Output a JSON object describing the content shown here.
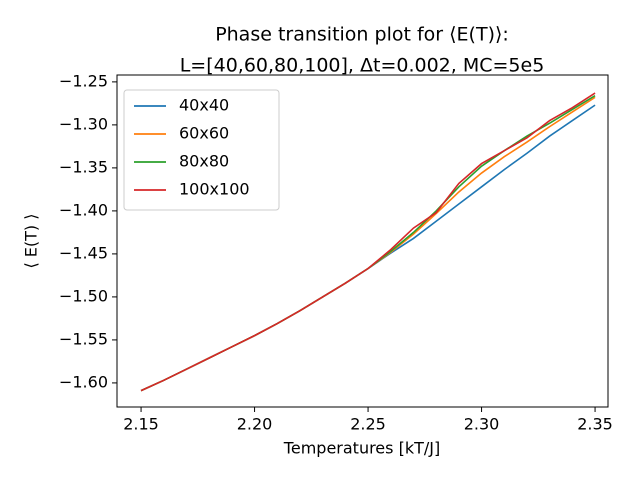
{
  "chart_data": {
    "type": "line",
    "title": [
      "Phase transition plot for ⟨E(T)⟩:",
      "L=[40,60,80,100], Δt=0.002, MC=5e5"
    ],
    "xlabel": "Temperatures [kT/J]",
    "ylabel": "⟨ E(T) ⟩",
    "x": [
      2.15,
      2.16,
      2.17,
      2.18,
      2.19,
      2.2,
      2.21,
      2.22,
      2.23,
      2.24,
      2.25,
      2.26,
      2.27,
      2.28,
      2.29,
      2.3,
      2.31,
      2.32,
      2.33,
      2.34,
      2.35
    ],
    "series": [
      {
        "name": "40x40",
        "color": "#1f77b4",
        "values": [
          -1.609,
          -1.597,
          -1.584,
          -1.571,
          -1.558,
          -1.545,
          -1.531,
          -1.516,
          -1.5,
          -1.484,
          -1.467,
          -1.449,
          -1.432,
          -1.412,
          -1.392,
          -1.372,
          -1.352,
          -1.333,
          -1.313,
          -1.295,
          -1.277
        ]
      },
      {
        "name": "60x60",
        "color": "#ff7f0e",
        "values": [
          -1.609,
          -1.597,
          -1.584,
          -1.571,
          -1.558,
          -1.545,
          -1.531,
          -1.516,
          -1.5,
          -1.484,
          -1.467,
          -1.448,
          -1.427,
          -1.403,
          -1.378,
          -1.356,
          -1.337,
          -1.32,
          -1.302,
          -1.285,
          -1.268
        ]
      },
      {
        "name": "80x80",
        "color": "#2ca02c",
        "values": [
          -1.609,
          -1.597,
          -1.584,
          -1.571,
          -1.558,
          -1.545,
          -1.531,
          -1.516,
          -1.5,
          -1.484,
          -1.467,
          -1.447,
          -1.425,
          -1.4,
          -1.372,
          -1.348,
          -1.33,
          -1.313,
          -1.298,
          -1.282,
          -1.266
        ]
      },
      {
        "name": "100x100",
        "color": "#d62728",
        "values": [
          -1.609,
          -1.597,
          -1.584,
          -1.571,
          -1.558,
          -1.545,
          -1.531,
          -1.516,
          -1.5,
          -1.484,
          -1.467,
          -1.445,
          -1.42,
          -1.402,
          -1.368,
          -1.345,
          -1.33,
          -1.315,
          -1.295,
          -1.28,
          -1.263
        ]
      }
    ],
    "xlim": [
      2.1394,
      2.3557
    ],
    "ylim": [
      -1.628,
      -1.242
    ],
    "xticks": [
      {
        "value": 2.15,
        "label": "2.15"
      },
      {
        "value": 2.2,
        "label": "2.20"
      },
      {
        "value": 2.25,
        "label": "2.25"
      },
      {
        "value": 2.3,
        "label": "2.30"
      },
      {
        "value": 2.35,
        "label": "2.35"
      }
    ],
    "yticks": [
      {
        "value": -1.6,
        "label": "−1.60"
      },
      {
        "value": -1.55,
        "label": "−1.55"
      },
      {
        "value": -1.5,
        "label": "−1.50"
      },
      {
        "value": -1.45,
        "label": "−1.45"
      },
      {
        "value": -1.4,
        "label": "−1.40"
      },
      {
        "value": -1.35,
        "label": "−1.35"
      },
      {
        "value": -1.3,
        "label": "−1.30"
      },
      {
        "value": -1.25,
        "label": "−1.25"
      }
    ],
    "legend": "upper left",
    "grid": false
  }
}
